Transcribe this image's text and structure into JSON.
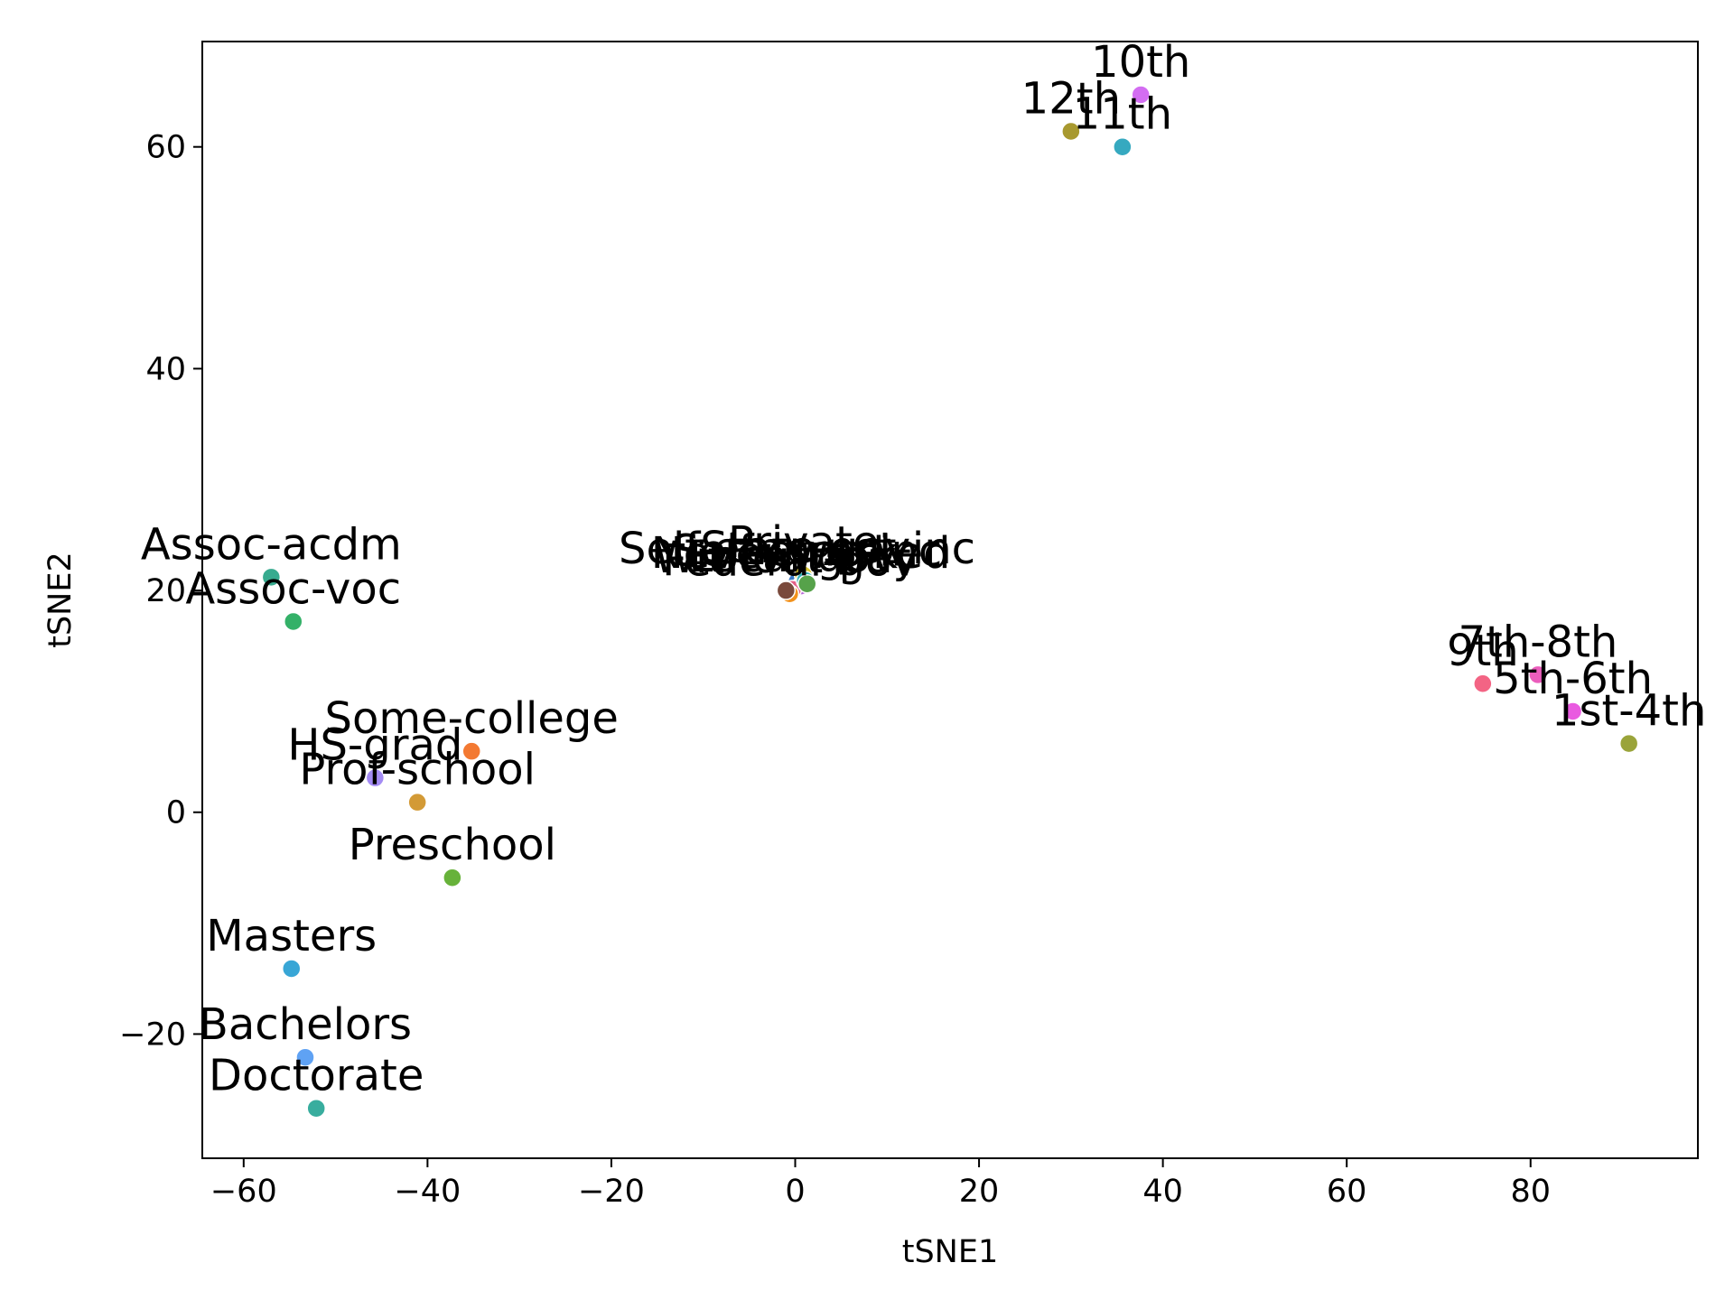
{
  "chart_data": {
    "type": "scatter",
    "title": "",
    "xlabel": "tSNE1",
    "ylabel": "tSNE2",
    "xlim": [
      -64.5,
      98.2
    ],
    "ylim": [
      -31.2,
      69.5
    ],
    "xticks": [
      -60,
      -40,
      -20,
      0,
      20,
      40,
      60,
      80
    ],
    "yticks": [
      -20,
      0,
      20,
      40,
      60
    ],
    "xtick_labels": [
      "−60",
      "−40",
      "−20",
      "0",
      "20",
      "40",
      "60",
      "80"
    ],
    "ytick_labels": [
      "−20",
      "0",
      "20",
      "40",
      "60"
    ],
    "grid": false,
    "points": [
      {
        "label": "10th",
        "x": 37.6,
        "y": 64.7,
        "color": "#d36df2"
      },
      {
        "label": "12th",
        "x": 30.0,
        "y": 61.4,
        "color": "#a8992f"
      },
      {
        "label": "11th",
        "x": 35.6,
        "y": 60.0,
        "color": "#36a9c0"
      },
      {
        "label": "Assoc-acdm",
        "x": -57.0,
        "y": 21.2,
        "color": "#37ab8f"
      },
      {
        "label": "Assoc-voc",
        "x": -54.6,
        "y": 17.2,
        "color": "#34b168"
      },
      {
        "label": "Some-college",
        "x": -35.2,
        "y": 5.5,
        "color": "#f37932"
      },
      {
        "label": "HS-grad",
        "x": -45.7,
        "y": 3.1,
        "color": "#a48cf4"
      },
      {
        "label": "Prof-school",
        "x": -41.1,
        "y": 0.9,
        "color": "#d39a36"
      },
      {
        "label": "Preschool",
        "x": -37.3,
        "y": -5.9,
        "color": "#67b23a"
      },
      {
        "label": "Masters",
        "x": -54.8,
        "y": -14.1,
        "color": "#38a6d6"
      },
      {
        "label": "Bachelors",
        "x": -53.3,
        "y": -22.1,
        "color": "#5fa2f4"
      },
      {
        "label": "Doctorate",
        "x": -52.1,
        "y": -26.7,
        "color": "#38ad9e"
      },
      {
        "label": "9th",
        "x": 74.8,
        "y": 11.6,
        "color": "#f36484"
      },
      {
        "label": "7th-8th",
        "x": 80.8,
        "y": 12.4,
        "color": "#eb5dbc"
      },
      {
        "label": "5th-6th",
        "x": 84.6,
        "y": 9.1,
        "color": "#e95ae0"
      },
      {
        "label": "1st-4th",
        "x": 90.7,
        "y": 6.2,
        "color": "#9aa43a"
      },
      {
        "label": "Self-emp-not-inc",
        "x": 0.2,
        "y": 20.8,
        "color": "#3a78c4"
      },
      {
        "label": "Never-worked",
        "x": 0.6,
        "y": 20.4,
        "color": "#b86cd8"
      },
      {
        "label": "Private",
        "x": 0.9,
        "y": 21.4,
        "color": "#d9c531"
      },
      {
        "label": "Local-gov",
        "x": -0.3,
        "y": 20.1,
        "color": "#e35f87"
      },
      {
        "label": "State-gov",
        "x": 1.1,
        "y": 20.9,
        "color": "#33b0b8"
      },
      {
        "label": "Self-emp-inc",
        "x": 1.3,
        "y": 20.6,
        "color": "#56a24a"
      },
      {
        "label": "Federal-gov",
        "x": -0.6,
        "y": 19.7,
        "color": "#f2921d"
      },
      {
        "label": "Without-pay",
        "x": -1.0,
        "y": 20.0,
        "color": "#7a4a3c"
      }
    ]
  }
}
